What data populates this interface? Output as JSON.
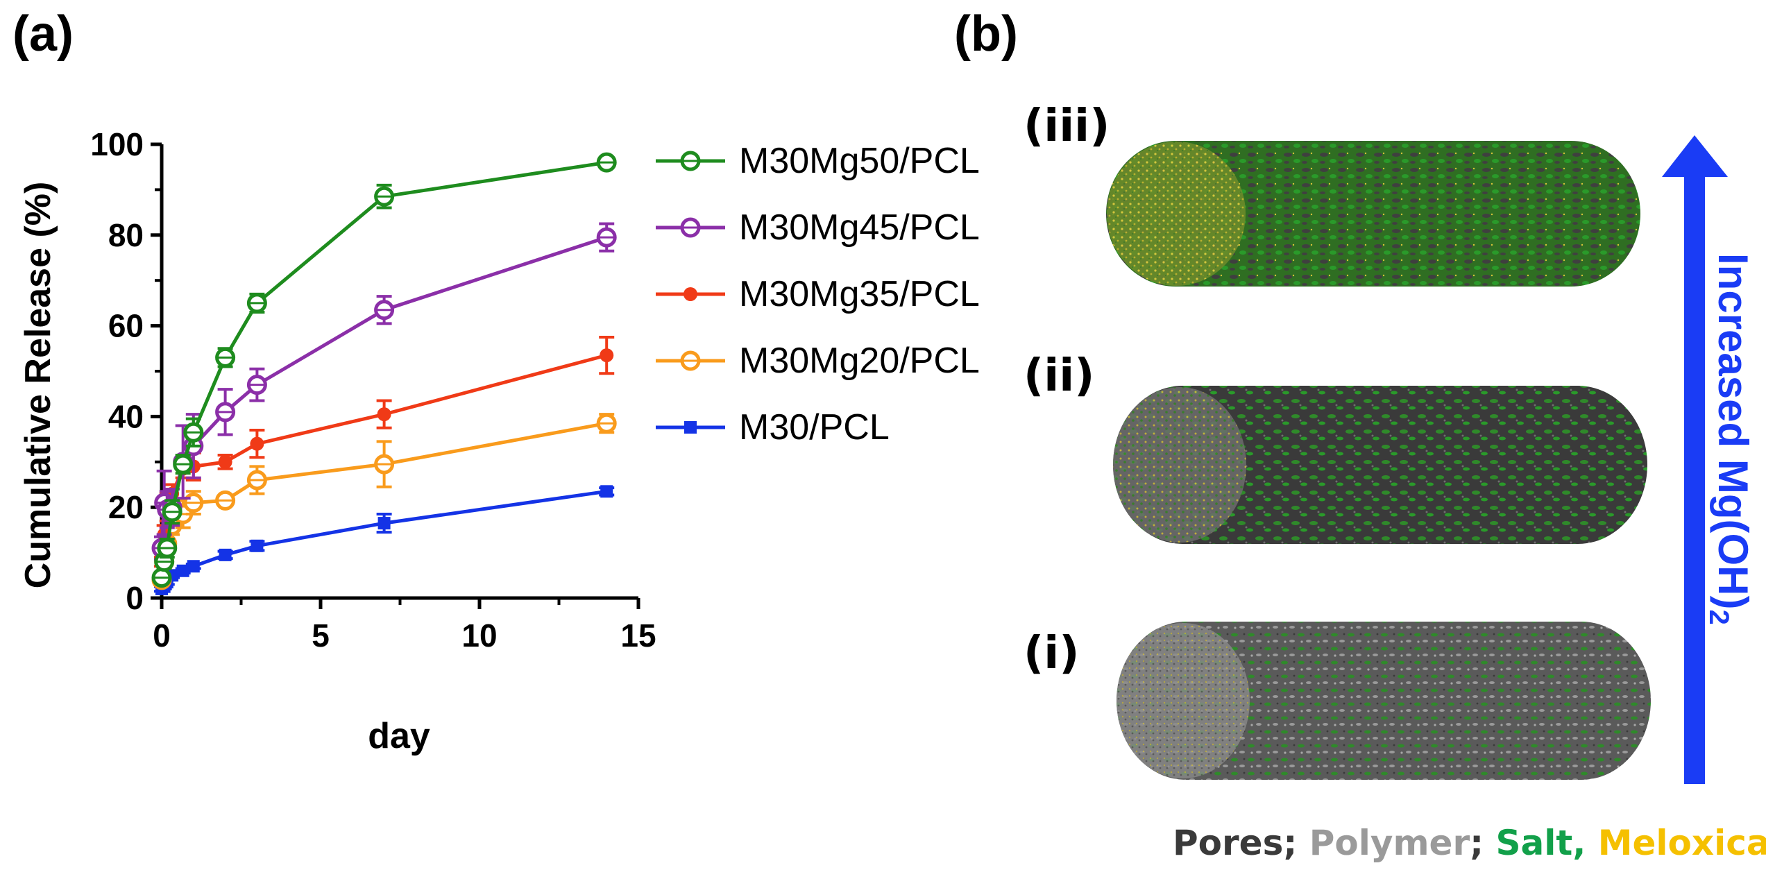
{
  "panels": {
    "a_label": "(a)",
    "b_label": "(b)"
  },
  "chart_data": {
    "type": "line",
    "title": "",
    "xlabel": "day",
    "ylabel": "Cumulative Release (%)",
    "xlim": [
      0,
      15
    ],
    "ylim": [
      0,
      100
    ],
    "xticks": [
      "0",
      "5",
      "10",
      "15"
    ],
    "yticks": [
      "0",
      "20",
      "40",
      "60",
      "80",
      "100"
    ],
    "grid": false,
    "legend_position": "right",
    "series": [
      {
        "name": "M30Mg50/PCL",
        "color": "#1e8c1e",
        "marker": "open-circle",
        "x": [
          0,
          0.08,
          0.17,
          0.33,
          0.67,
          1,
          2,
          3,
          7,
          14
        ],
        "y": [
          4.5,
          8,
          11,
          19,
          29.5,
          36.5,
          53,
          65,
          88.5,
          96
        ],
        "err": [
          0.8,
          1.5,
          2,
          2.5,
          2,
          3,
          2,
          2,
          2.5,
          1
        ]
      },
      {
        "name": "M30Mg45/PCL",
        "color": "#8b2fa8",
        "marker": "open-circle",
        "x": [
          0,
          0.08,
          0.17,
          0.33,
          0.67,
          1,
          2,
          3,
          7,
          14
        ],
        "y": [
          11,
          21,
          19.5,
          20,
          30,
          33.5,
          41,
          47,
          63.5,
          79.5
        ],
        "err": [
          2.5,
          7,
          4,
          4,
          8,
          7,
          5,
          3.5,
          3,
          3
        ]
      },
      {
        "name": "M30Mg35/PCL",
        "color": "#f03a17",
        "marker": "filled-circle",
        "x": [
          0,
          0.08,
          0.17,
          0.33,
          0.67,
          1,
          2,
          3,
          7,
          14
        ],
        "y": [
          8,
          14,
          20,
          23,
          28.5,
          29,
          30,
          34,
          40.5,
          53.5
        ],
        "err": [
          1,
          2,
          3,
          2,
          2,
          3,
          1.5,
          3,
          3,
          4
        ]
      },
      {
        "name": "M30Mg20/PCL",
        "color": "#f99b1c",
        "marker": "open-circle",
        "x": [
          0,
          0.08,
          0.17,
          0.33,
          0.67,
          1,
          2,
          3,
          7,
          14
        ],
        "y": [
          4,
          8,
          12,
          16,
          18.5,
          21,
          21.5,
          26,
          29.5,
          38.5
        ],
        "err": [
          1,
          1.5,
          2,
          2,
          3,
          2.5,
          1,
          3,
          5,
          2
        ]
      },
      {
        "name": "M30/PCL",
        "color": "#1433e6",
        "marker": "filled-square",
        "x": [
          0,
          0.08,
          0.17,
          0.33,
          0.67,
          1,
          2,
          3,
          7,
          14
        ],
        "y": [
          2,
          2.5,
          3.5,
          5,
          6,
          7,
          9.5,
          11.5,
          16.5,
          23.5
        ],
        "err": [
          0.5,
          0.5,
          0.5,
          0.5,
          0.5,
          0.5,
          0.8,
          1,
          2,
          0.8
        ]
      }
    ]
  },
  "panel_b": {
    "rods": [
      {
        "label": "(iii)",
        "color_scheme": "green-dense"
      },
      {
        "label": "(ii)",
        "color_scheme": "green-dark"
      },
      {
        "label": "(i)",
        "color_scheme": "grey-green"
      }
    ],
    "arrow_label": "Increased Mg(OH)",
    "arrow_subscript": "2",
    "arrow_color": "#1a3cf5",
    "caption": [
      {
        "text": "Pores; ",
        "color": "#3a3a3a"
      },
      {
        "text": "Polymer",
        "color": "#9a9a9a"
      },
      {
        "text": "; ",
        "color": "#3a3a3a"
      },
      {
        "text": "Salt, ",
        "color": "#12a04a"
      },
      {
        "text": "Meloxicam",
        "color": "#f5c000"
      }
    ]
  }
}
